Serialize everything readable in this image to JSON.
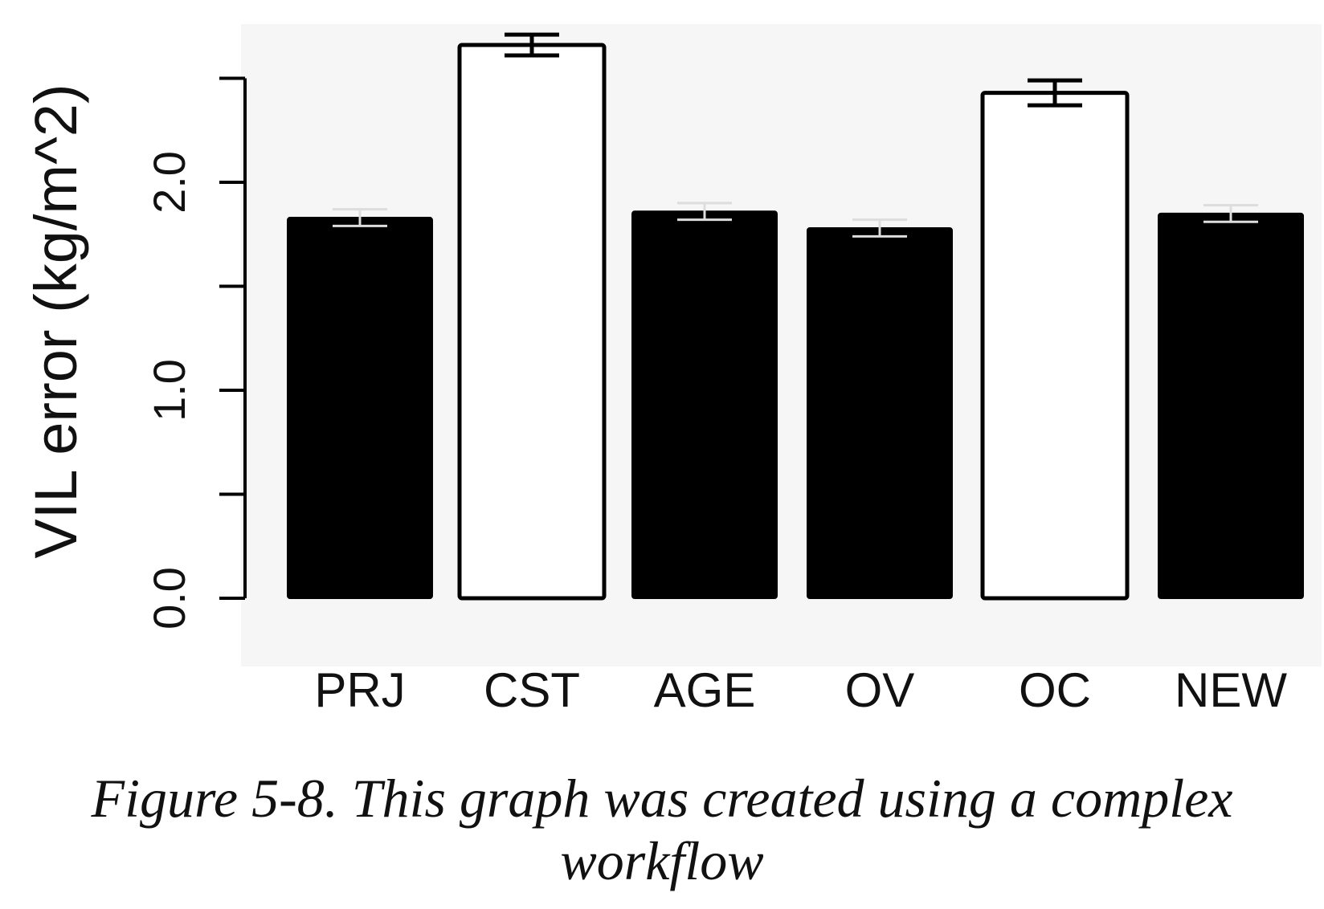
{
  "chart_data": {
    "type": "bar",
    "categories": [
      "PRJ",
      "CST",
      "AGE",
      "OV",
      "OC",
      "NEW"
    ],
    "values": [
      1.83,
      2.66,
      1.86,
      1.78,
      2.43,
      1.85
    ],
    "errors": [
      0.04,
      0.05,
      0.04,
      0.04,
      0.06,
      0.04
    ],
    "bar_fills": [
      "#000000",
      "#ffffff",
      "#000000",
      "#000000",
      "#ffffff",
      "#000000"
    ],
    "title": "",
    "xlabel": "",
    "ylabel": "VIL error (kg/m^2)",
    "ylim": [
      0,
      2.8
    ],
    "yticks": [
      0,
      0.5,
      1.0,
      1.5,
      2.0,
      2.5
    ],
    "ytick_labels": [
      "0.0",
      "",
      "1.0",
      "",
      "2.0",
      ""
    ],
    "grid": false,
    "legend": "none"
  },
  "caption": {
    "text": "Figure 5-8. This graph was created using a complex workflow"
  }
}
